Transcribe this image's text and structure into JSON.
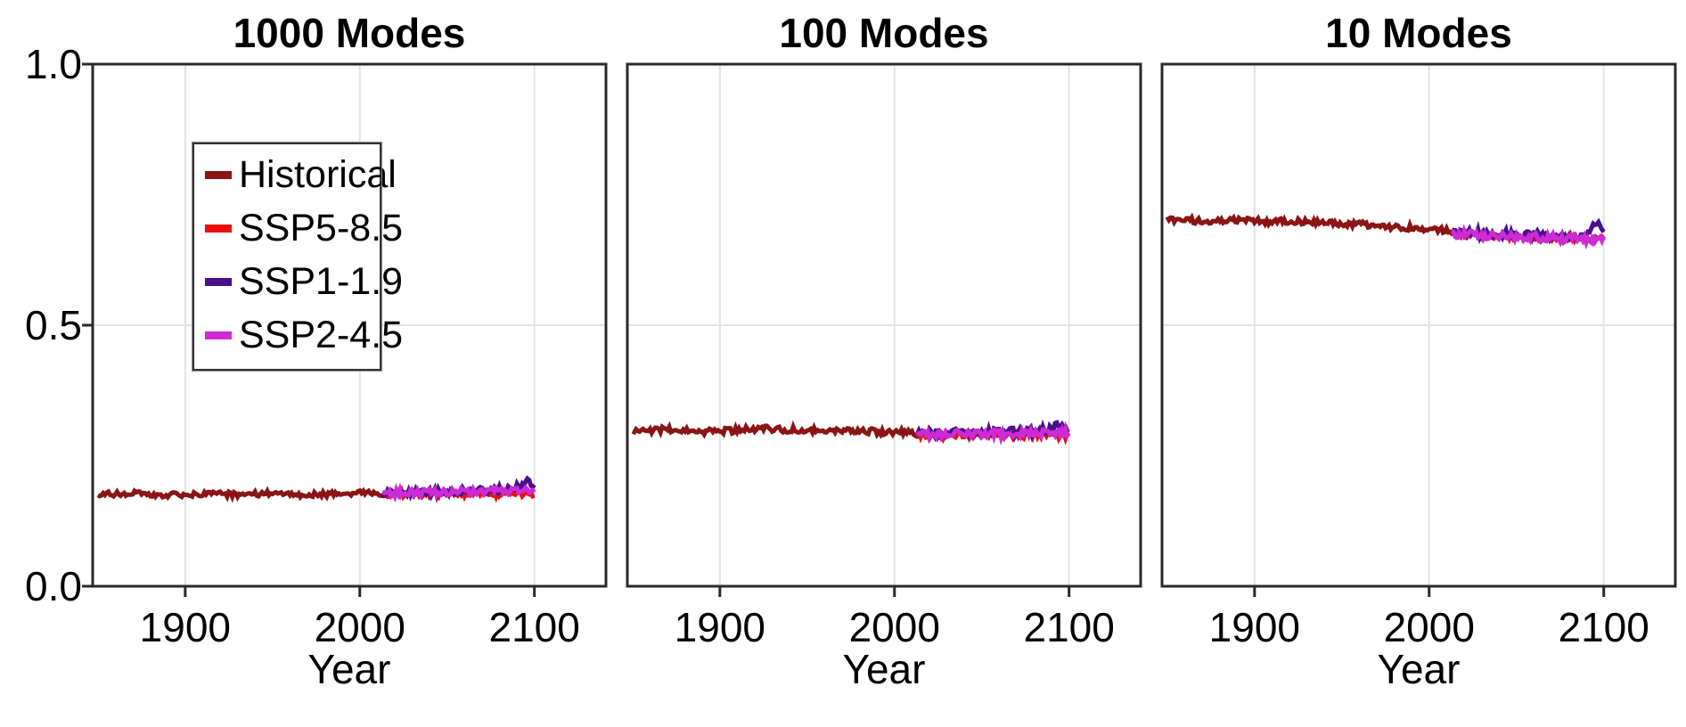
{
  "figure": {
    "background": "#ffffff",
    "y_tick_labels": [
      "1.0",
      "0.5",
      "0.0"
    ]
  },
  "chart_data": {
    "type": "line",
    "xlabel": "Year",
    "xlim": [
      1847,
      2141
    ],
    "ylim": [
      0.0,
      1.0
    ],
    "x_ticks": [
      1900,
      2000,
      2100
    ],
    "y_ticks": [
      0.0,
      0.5,
      1.0
    ],
    "grid": true,
    "grid_color": "#e2e2e2",
    "axis_color": "#2a2a2a",
    "line_width": 5,
    "legend": {
      "position": "upper left",
      "panel": 0,
      "entries": [
        "Historical",
        "SSP5-8.5",
        "SSP1-1.9",
        "SSP2-4.5"
      ]
    },
    "colors": {
      "historical": "#8B1414",
      "ssp585": "#EC0F0F",
      "ssp119": "#4B0F8E",
      "ssp245": "#CC2BD6"
    },
    "panels": [
      {
        "title": "1000 Modes",
        "series": [
          {
            "name": "Historical",
            "color": "#8B1414",
            "noise": 0.005,
            "x": [
              1850,
              1870,
              1890,
              1910,
              1930,
              1950,
              1970,
              1990,
              2005,
              2014
            ],
            "y": [
              0.176,
              0.178,
              0.175,
              0.177,
              0.176,
              0.178,
              0.175,
              0.177,
              0.179,
              0.175
            ]
          },
          {
            "name": "SSP5-8.5",
            "color": "#EC0F0F",
            "noise": 0.006,
            "x": [
              2013,
              2030,
              2050,
              2070,
              2090,
              2100
            ],
            "y": [
              0.176,
              0.177,
              0.176,
              0.178,
              0.178,
              0.177
            ]
          },
          {
            "name": "SSP1-1.9",
            "color": "#4B0F8E",
            "noise": 0.007,
            "x": [
              2013,
              2030,
              2050,
              2070,
              2088,
              2096,
              2100
            ],
            "y": [
              0.178,
              0.18,
              0.181,
              0.183,
              0.186,
              0.201,
              0.19
            ]
          },
          {
            "name": "SSP2-4.5",
            "color": "#CC2BD6",
            "noise": 0.007,
            "x": [
              2013,
              2030,
              2050,
              2070,
              2090,
              2100
            ],
            "y": [
              0.177,
              0.179,
              0.18,
              0.182,
              0.184,
              0.183
            ]
          }
        ]
      },
      {
        "title": "100 Modes",
        "series": [
          {
            "name": "Historical",
            "color": "#8B1414",
            "noise": 0.006,
            "x": [
              1850,
              1870,
              1890,
              1910,
              1930,
              1950,
              1970,
              1990,
              2005,
              2014
            ],
            "y": [
              0.297,
              0.3,
              0.296,
              0.299,
              0.302,
              0.298,
              0.3,
              0.296,
              0.295,
              0.291
            ]
          },
          {
            "name": "SSP5-8.5",
            "color": "#EC0F0F",
            "noise": 0.007,
            "x": [
              2013,
              2030,
              2050,
              2070,
              2090,
              2100
            ],
            "y": [
              0.289,
              0.288,
              0.29,
              0.289,
              0.291,
              0.289
            ]
          },
          {
            "name": "SSP1-1.9",
            "color": "#4B0F8E",
            "noise": 0.008,
            "x": [
              2013,
              2030,
              2050,
              2070,
              2088,
              2096,
              2100
            ],
            "y": [
              0.293,
              0.295,
              0.294,
              0.296,
              0.298,
              0.311,
              0.297
            ]
          },
          {
            "name": "SSP2-4.5",
            "color": "#CC2BD6",
            "noise": 0.008,
            "x": [
              2013,
              2030,
              2050,
              2070,
              2090,
              2100
            ],
            "y": [
              0.291,
              0.292,
              0.291,
              0.293,
              0.294,
              0.292
            ]
          }
        ]
      },
      {
        "title": "10 Modes",
        "series": [
          {
            "name": "Historical",
            "color": "#8B1414",
            "noise": 0.006,
            "x": [
              1850,
              1870,
              1890,
              1910,
              1930,
              1950,
              1970,
              1990,
              2005,
              2014
            ],
            "y": [
              0.702,
              0.7,
              0.701,
              0.698,
              0.699,
              0.694,
              0.691,
              0.686,
              0.683,
              0.68
            ]
          },
          {
            "name": "SSP5-8.5",
            "color": "#EC0F0F",
            "noise": 0.006,
            "x": [
              2013,
              2030,
              2050,
              2070,
              2090,
              2100
            ],
            "y": [
              0.674,
              0.671,
              0.669,
              0.667,
              0.665,
              0.664
            ]
          },
          {
            "name": "SSP1-1.9",
            "color": "#4B0F8E",
            "noise": 0.008,
            "x": [
              2013,
              2030,
              2050,
              2070,
              2088,
              2096,
              2100
            ],
            "y": [
              0.679,
              0.676,
              0.674,
              0.672,
              0.67,
              0.694,
              0.676
            ]
          },
          {
            "name": "SSP2-4.5",
            "color": "#CC2BD6",
            "noise": 0.008,
            "x": [
              2013,
              2030,
              2050,
              2070,
              2090,
              2100
            ],
            "y": [
              0.676,
              0.673,
              0.67,
              0.667,
              0.665,
              0.666
            ]
          }
        ]
      }
    ]
  }
}
